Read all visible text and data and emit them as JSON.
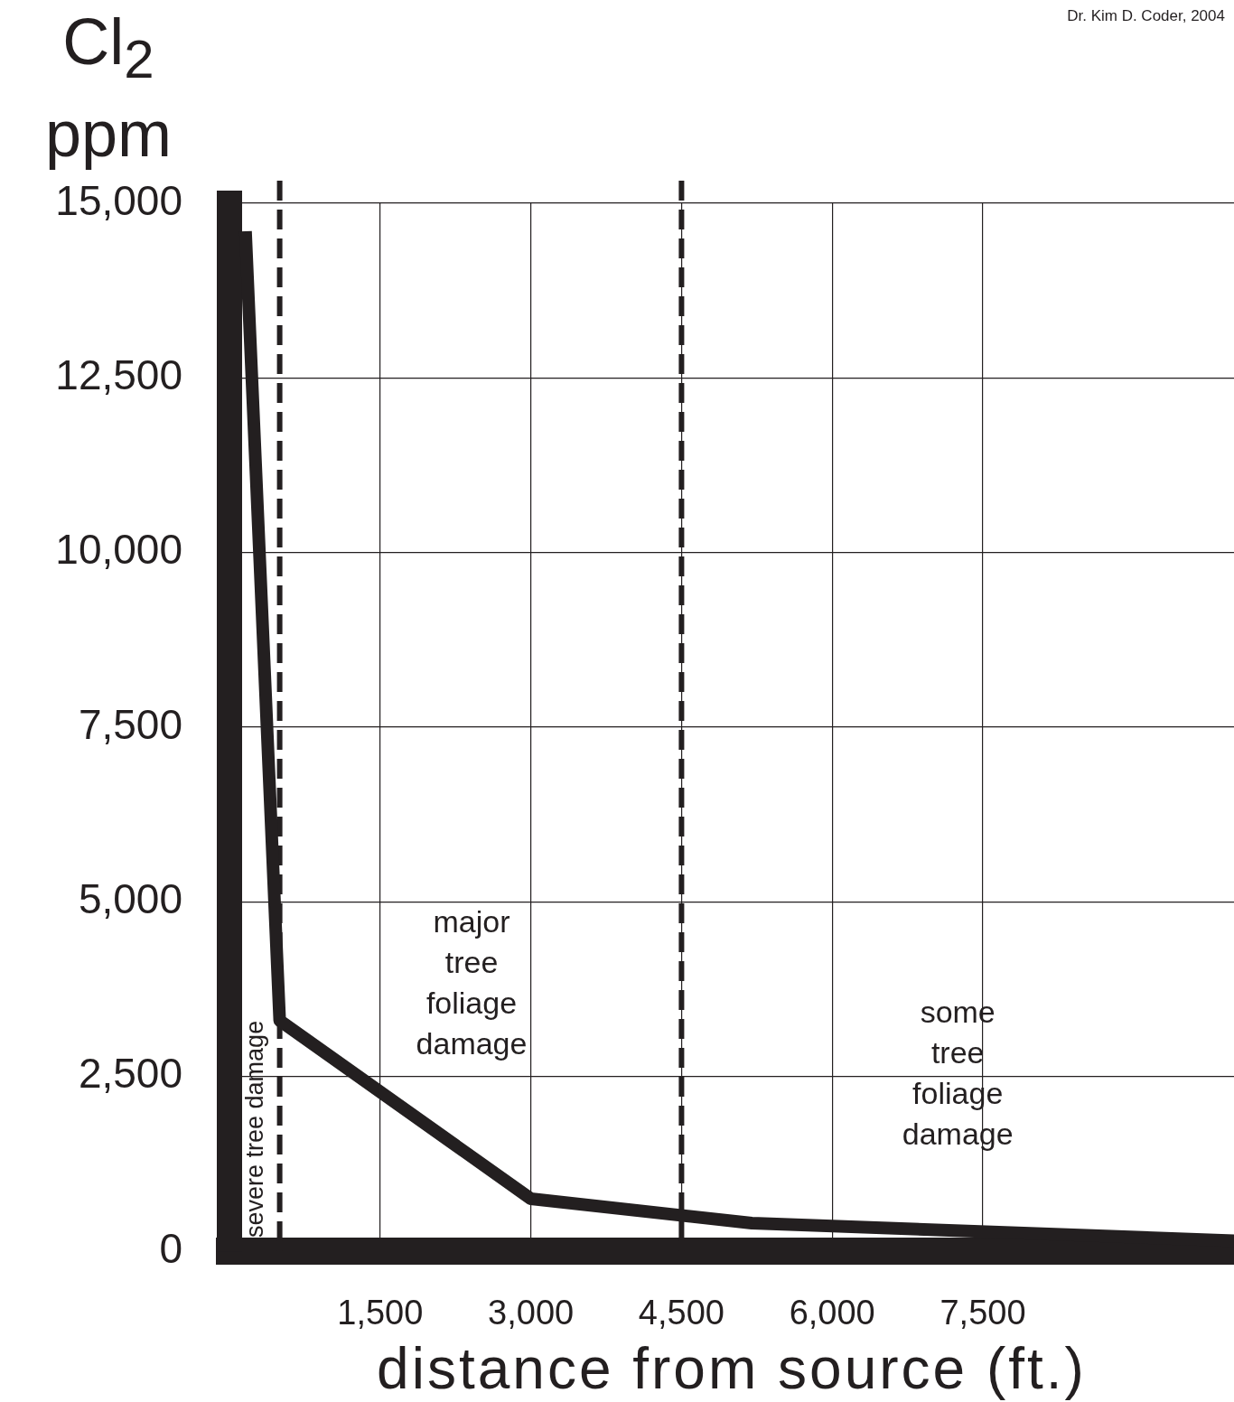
{
  "chart_data": {
    "type": "line",
    "ylabel": "Cl$_{2}$ ppm",
    "xlabel": "distance from source (ft.)",
    "x": [
      160,
      500,
      3000,
      5200,
      10000
    ],
    "series": [
      {
        "color": "#231f20",
        "values": [
          14600,
          3300,
          750,
          400,
          150
        ]
      }
    ],
    "xlim": [
      0,
      10000
    ],
    "xticks": [
      {
        "value": 1500,
        "label": "1,500"
      },
      {
        "value": 3000,
        "label": "3,000"
      },
      {
        "value": 4500,
        "label": "4,500"
      },
      {
        "value": 6000,
        "label": "6,000"
      },
      {
        "value": 7500,
        "label": "7,500"
      }
    ],
    "ylim": [
      0,
      15000
    ],
    "yticks": [
      0,
      {
        "value": 2500,
        "label": "2,500"
      },
      {
        "value": 5000,
        "label": "5,000"
      },
      {
        "value": 7500,
        "label": "7,500"
      },
      {
        "value": 10000,
        "label": "10,000"
      },
      {
        "value": 12500,
        "label": "12,500"
      },
      {
        "value": 15000,
        "label": "15,000"
      }
    ],
    "grid": true,
    "legend": false,
    "marker": "none",
    "line_style": "solid",
    "ref_lines": [
      {
        "axis": "x",
        "value": 500,
        "color": "#231f20",
        "line_style": "dashed"
      },
      {
        "axis": "x",
        "value": 4500,
        "color": "#231f20",
        "line_style": "dashed"
      }
    ],
    "annotations": [
      "severe tree damage",
      "major tree foliage damage",
      "some tree foliage damage",
      "Dr.  Kim D. Coder,  2004"
    ]
  }
}
